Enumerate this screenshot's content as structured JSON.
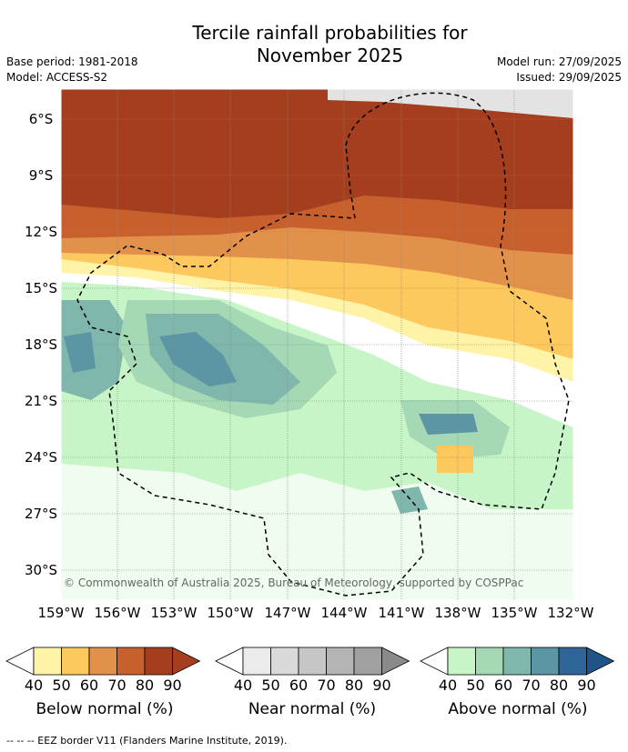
{
  "title_line1": "Tercile rainfall probabilities for",
  "title_line2": "November 2025",
  "meta": {
    "base_period": "Base period: 1981-2018",
    "model": "Model: ACCESS-S2",
    "model_run": "Model run: 27/09/2025",
    "issued": "Issued: 29/09/2025"
  },
  "map": {
    "lat_labels": [
      "6°S",
      "9°S",
      "12°S",
      "15°S",
      "18°S",
      "21°S",
      "24°S",
      "27°S",
      "30°S"
    ],
    "lon_labels": [
      "159°W",
      "156°W",
      "153°W",
      "150°W",
      "147°W",
      "144°W",
      "141°W",
      "138°W",
      "135°W",
      "132°W"
    ],
    "credit": "© Commonwealth of Australia 2025, Bureau of Meteorology, supported by COSPPac"
  },
  "legends": [
    {
      "label": "Below normal (%)",
      "ticks": [
        "40",
        "50",
        "60",
        "70",
        "80",
        "90"
      ],
      "colors": [
        "#fff3a8",
        "#fdc95f",
        "#e2914a",
        "#c8602e",
        "#a43e1e",
        "#a43e1e"
      ]
    },
    {
      "label": "Near normal (%)",
      "ticks": [
        "40",
        "50",
        "60",
        "70",
        "80",
        "90"
      ],
      "colors": [
        "#ebebeb",
        "#d9d9d9",
        "#c6c6c6",
        "#b4b4b4",
        "#a0a0a0",
        "#8a8a8a"
      ]
    },
    {
      "label": "Above normal (%)",
      "ticks": [
        "40",
        "50",
        "60",
        "70",
        "80",
        "90"
      ],
      "colors": [
        "#c8f5c8",
        "#a5d8b5",
        "#7fb7ac",
        "#5c96a4",
        "#2f6498",
        "#1f5488"
      ]
    }
  ],
  "footer": "--  --  -- EEZ border V11 (Flanders Marine Institute, 2019)."
}
